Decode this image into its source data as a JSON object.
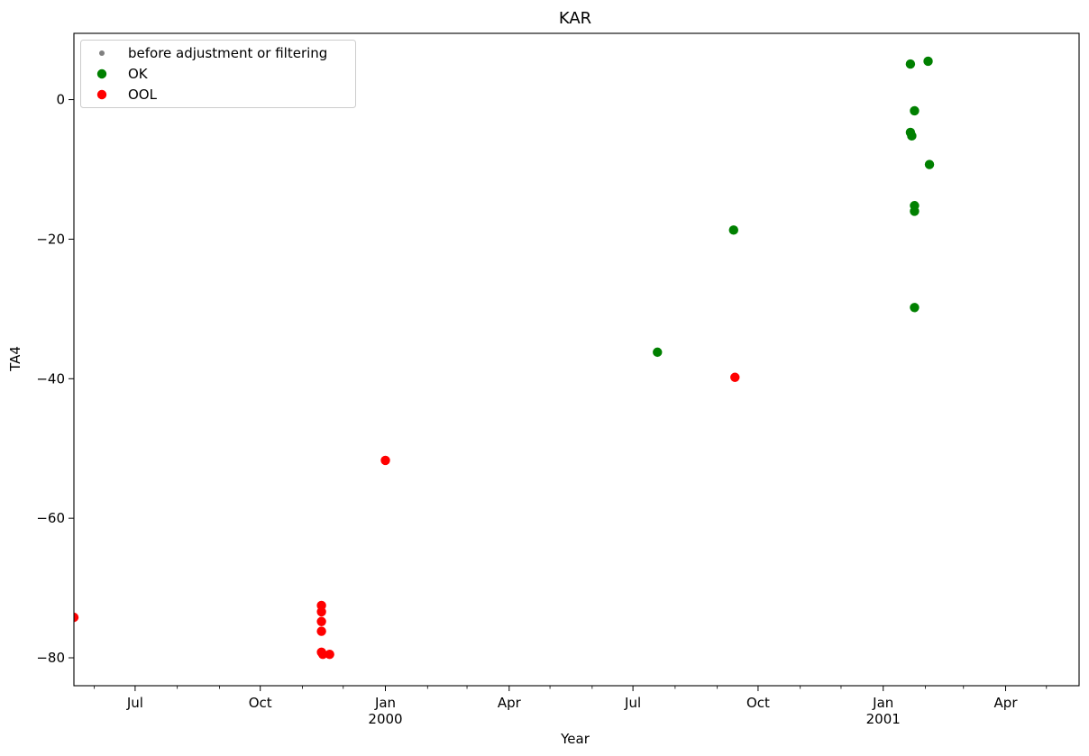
{
  "chart_data": {
    "type": "scatter",
    "title": "KAR",
    "xlabel": "Year",
    "ylabel": "TA4",
    "x_axis": {
      "type": "date",
      "range": [
        "1999-05-17",
        "2001-05-25"
      ],
      "major_ticks": [
        {
          "date": "1999-07-01",
          "label": "Jul",
          "sublabel": ""
        },
        {
          "date": "1999-10-01",
          "label": "Oct",
          "sublabel": ""
        },
        {
          "date": "2000-01-01",
          "label": "Jan",
          "sublabel": "2000"
        },
        {
          "date": "2000-04-01",
          "label": "Apr",
          "sublabel": ""
        },
        {
          "date": "2000-07-01",
          "label": "Jul",
          "sublabel": ""
        },
        {
          "date": "2000-10-01",
          "label": "Oct",
          "sublabel": ""
        },
        {
          "date": "2001-01-01",
          "label": "Jan",
          "sublabel": "2001"
        },
        {
          "date": "2001-04-01",
          "label": "Apr",
          "sublabel": ""
        }
      ],
      "minor_ticks": [
        "1999-06-01",
        "1999-08-01",
        "1999-09-01",
        "1999-11-01",
        "1999-12-01",
        "2000-02-01",
        "2000-03-01",
        "2000-05-01",
        "2000-06-01",
        "2000-08-01",
        "2000-09-01",
        "2000-11-01",
        "2000-12-01",
        "2001-02-01",
        "2001-03-01",
        "2001-05-01"
      ]
    },
    "y_axis": {
      "range": [
        -84,
        9.5
      ],
      "ticks": [
        -80,
        -60,
        -40,
        -20,
        0
      ],
      "tick_labels": [
        "−80",
        "−60",
        "−40",
        "−20",
        "0"
      ]
    },
    "grid": false,
    "legend": {
      "placement": "top-left",
      "entries": [
        {
          "label": "before adjustment or filtering",
          "color": "#808080",
          "marker": "small-dot"
        },
        {
          "label": "OK",
          "color": "#008000",
          "marker": "dot"
        },
        {
          "label": "OOL",
          "color": "#ff0000",
          "marker": "dot"
        }
      ]
    },
    "series": [
      {
        "name": "OK",
        "color": "#008000",
        "points": [
          {
            "x": "2000-07-19",
            "y": -36.2
          },
          {
            "x": "2000-09-13",
            "y": -18.7
          },
          {
            "x": "2001-01-21",
            "y": 5.1
          },
          {
            "x": "2001-02-03",
            "y": 5.5
          },
          {
            "x": "2001-01-24",
            "y": -1.6
          },
          {
            "x": "2001-01-21",
            "y": -4.7
          },
          {
            "x": "2001-01-22",
            "y": -5.2
          },
          {
            "x": "2001-02-04",
            "y": -9.3
          },
          {
            "x": "2001-01-24",
            "y": -15.2
          },
          {
            "x": "2001-01-24",
            "y": -16.0
          },
          {
            "x": "2001-01-24",
            "y": -29.8
          }
        ]
      },
      {
        "name": "OOL",
        "color": "#ff0000",
        "points": [
          {
            "x": "1999-05-17",
            "y": -74.2
          },
          {
            "x": "1999-11-15",
            "y": -72.5
          },
          {
            "x": "1999-11-15",
            "y": -73.4
          },
          {
            "x": "1999-11-15",
            "y": -74.8
          },
          {
            "x": "1999-11-15",
            "y": -76.2
          },
          {
            "x": "1999-11-15",
            "y": -79.2
          },
          {
            "x": "1999-11-16",
            "y": -79.5
          },
          {
            "x": "1999-11-21",
            "y": -79.5
          },
          {
            "x": "2000-01-01",
            "y": -51.7
          },
          {
            "x": "2000-09-14",
            "y": -39.8
          }
        ]
      }
    ]
  }
}
